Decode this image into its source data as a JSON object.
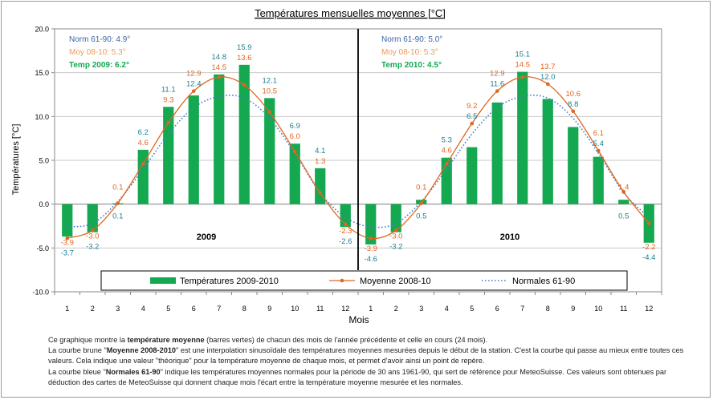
{
  "chart_data": {
    "type": "bar",
    "title": "Températures mensuelles moyennes  [°C]",
    "xlabel": "Mois",
    "ylabel": "Températures [°C]",
    "ylim": [
      -10,
      20
    ],
    "yticks": [
      "20.0",
      "15.0",
      "10.0",
      "5.0",
      "0.0",
      "-5.0",
      "-10.0"
    ],
    "yticks_values": [
      20,
      15,
      10,
      5,
      0,
      -5,
      -10
    ],
    "categories": [
      "1",
      "2",
      "3",
      "4",
      "5",
      "6",
      "7",
      "8",
      "9",
      "10",
      "11",
      "12",
      "1",
      "2",
      "3",
      "4",
      "5",
      "6",
      "7",
      "8",
      "9",
      "10",
      "11",
      "12"
    ],
    "series": [
      {
        "name": "Températures 2009-2010",
        "kind": "bar",
        "color": "#14a850",
        "values": [
          -3.7,
          -3.2,
          0.1,
          6.2,
          11.1,
          12.4,
          14.8,
          15.9,
          12.1,
          6.9,
          4.1,
          -2.6,
          -4.6,
          -3.2,
          0.5,
          5.3,
          6.5,
          11.6,
          15.1,
          12.0,
          8.8,
          5.4,
          0.5,
          -4.4
        ],
        "labels": [
          "-3.7",
          "-3.2",
          "0.1",
          "6.2",
          "11.1",
          "12.4",
          "14.8",
          "15.9",
          "12.1",
          "6.9",
          "4.1",
          "-2.6",
          "-4.6",
          "-3.2",
          "0.5",
          "5.3",
          "6.5",
          "11.6",
          "15.1",
          "12.0",
          "8.8",
          "5.4",
          "0.5",
          "-4.4"
        ]
      },
      {
        "name": "Moyenne 2008-10",
        "kind": "line",
        "color": "#e0661e",
        "values": [
          -3.9,
          -3.0,
          0.1,
          4.6,
          9.3,
          12.9,
          14.5,
          13.6,
          10.5,
          6.0,
          1.3,
          -2.3,
          -3.9,
          -3.0,
          0.1,
          4.6,
          9.2,
          12.9,
          14.5,
          13.7,
          10.6,
          6.1,
          1.4,
          -2.2
        ],
        "labels": [
          "-3.9",
          "-3.0",
          "0.1",
          "4.6",
          "9.3",
          "12.9",
          "14.5",
          "13.6",
          "10.5",
          "6.0",
          "1.3",
          "-2.3",
          "-3.9",
          "-3.0",
          "0.1",
          "4.6",
          "9.2",
          "12.9",
          "14.5",
          "13.7",
          "10.6",
          "6.1",
          "1.4",
          "-2.2"
        ]
      },
      {
        "name": "Normales 61-90",
        "kind": "dotted",
        "color": "#4a7ecf",
        "values": [
          -2.6,
          -2.2,
          0.3,
          4.0,
          8.0,
          11.0,
          12.3,
          12.1,
          9.8,
          5.8,
          1.3,
          -1.5,
          -2.6,
          -2.2,
          0.3,
          4.0,
          8.0,
          11.0,
          12.3,
          12.1,
          9.8,
          5.8,
          1.3,
          -1.5
        ]
      }
    ],
    "year_labels": [
      "2009",
      "2010"
    ],
    "annotations": [
      {
        "norm": "Norm 61-90: 4.9°",
        "moy": "Moy 08-10:  5.3°",
        "temp": "Temp 2009:  6.2°"
      },
      {
        "norm": "Norm 61-90: 5.0°",
        "moy": "Moy 08-10:  5.3°",
        "temp": "Temp 2010:  4.5°"
      }
    ],
    "legend_position": "bottom",
    "grid": true,
    "colors": {
      "bar": "#14a850",
      "moyenne": "#e0661e",
      "normales": "#4a7ecf",
      "bar_label": "#1f7f8f",
      "grid": "#c8c8c8"
    }
  },
  "caption": {
    "line1_before": "Ce graphique montre la ",
    "line1_bold": "température moyenne",
    "line1_after": " (barres vertes) de chacun des mois de l'année précédente et celle en cours (24 mois).",
    "line2_before": "La courbe brune \"",
    "line2_bold": "Moyenne 2008-2010",
    "line2_after": "\" est une interpolation sinusoïdale des  températures moyennes mesurées depuis le début de la station. C'est la courbe qui passe au mieux entre toutes ces valeurs. Cela indique une valeur \"théorique\" pour la température moyenne de chaque mois, et permet d'avoir ainsi un point de repère.",
    "line3_before": "La courbe bleue \"",
    "line3_bold": "Normales 61-90",
    "line3_after": "\" indique les  températures moyennes normales pour la période de 30 ans 1961-90, qui sert de référence pour MeteoSuisse. Ces valeurs sont obtenues par déduction des cartes de MeteoSuisse qui donnent chaque mois l'écart entre la température moyenne mesurée et les normales."
  }
}
